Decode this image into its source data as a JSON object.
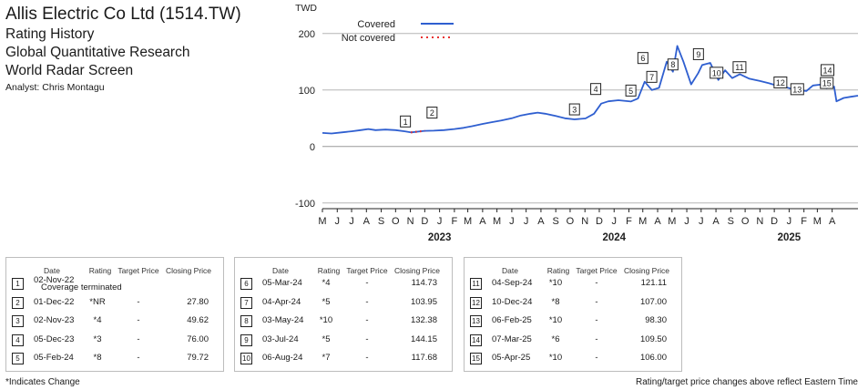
{
  "header": {
    "company": "Allis Electric Co Ltd (1514.TW)",
    "line1": "Rating History",
    "line2": "Global Quantitative Research",
    "line3": "World Radar Screen",
    "analyst": "Analyst: Chris Montagu"
  },
  "chart_data": {
    "type": "line",
    "ylabel": "TWD",
    "ylim": [
      -110,
      240
    ],
    "yticks": [
      -100,
      0,
      100,
      200
    ],
    "xlim": [
      "2022-05-01",
      "2025-05-25"
    ],
    "months": [
      "M",
      "J",
      "J",
      "A",
      "S",
      "O",
      "N",
      "D",
      "J",
      "F",
      "M",
      "A",
      "M",
      "J",
      "J",
      "A",
      "S",
      "O",
      "N",
      "D",
      "J",
      "F",
      "M",
      "A",
      "M",
      "J",
      "J",
      "A",
      "S",
      "O",
      "N",
      "D",
      "J",
      "F",
      "M",
      "A"
    ],
    "years": [
      {
        "label": "2023",
        "date": "2023-01-01"
      },
      {
        "label": "2024",
        "date": "2024-01-01"
      },
      {
        "label": "2025",
        "date": "2025-01-01"
      }
    ],
    "grid": true,
    "legend_position": "top-left",
    "series": [
      {
        "name": "Covered",
        "color": "#2f5fd0",
        "style": "solid",
        "points": [
          [
            "2022-05-01",
            24
          ],
          [
            "2022-05-20",
            23
          ],
          [
            "2022-06-10",
            25
          ],
          [
            "2022-07-01",
            27
          ],
          [
            "2022-07-20",
            29
          ],
          [
            "2022-08-05",
            31
          ],
          [
            "2022-08-20",
            29
          ],
          [
            "2022-09-10",
            30
          ],
          [
            "2022-10-01",
            29
          ],
          [
            "2022-10-20",
            27
          ],
          [
            "2022-11-02",
            25
          ],
          [
            "2022-12-01",
            27.8
          ],
          [
            "2022-12-20",
            28
          ],
          [
            "2023-01-10",
            29
          ],
          [
            "2023-02-01",
            31
          ],
          [
            "2023-02-20",
            33
          ],
          [
            "2023-03-10",
            36
          ],
          [
            "2023-04-01",
            40
          ],
          [
            "2023-04-20",
            43
          ],
          [
            "2023-05-10",
            46
          ],
          [
            "2023-06-01",
            50
          ],
          [
            "2023-06-20",
            55
          ],
          [
            "2023-07-10",
            58
          ],
          [
            "2023-07-25",
            60
          ],
          [
            "2023-08-10",
            58
          ],
          [
            "2023-09-01",
            54
          ],
          [
            "2023-09-20",
            50
          ],
          [
            "2023-10-10",
            48
          ],
          [
            "2023-11-02",
            49.62
          ],
          [
            "2023-11-20",
            58
          ],
          [
            "2023-12-05",
            76
          ],
          [
            "2023-12-20",
            80
          ],
          [
            "2024-01-10",
            82
          ],
          [
            "2024-02-05",
            79.72
          ],
          [
            "2024-02-20",
            85
          ],
          [
            "2024-03-05",
            114.73
          ],
          [
            "2024-03-20",
            100
          ],
          [
            "2024-04-04",
            103.95
          ],
          [
            "2024-04-20",
            150
          ],
          [
            "2024-05-03",
            132.38
          ],
          [
            "2024-05-12",
            178
          ],
          [
            "2024-05-25",
            150
          ],
          [
            "2024-06-10",
            110
          ],
          [
            "2024-06-25",
            130
          ],
          [
            "2024-07-03",
            144.15
          ],
          [
            "2024-07-20",
            148
          ],
          [
            "2024-08-06",
            117.68
          ],
          [
            "2024-08-20",
            135
          ],
          [
            "2024-09-04",
            121.11
          ],
          [
            "2024-09-20",
            128
          ],
          [
            "2024-10-10",
            120
          ],
          [
            "2024-11-01",
            116
          ],
          [
            "2024-11-20",
            112
          ],
          [
            "2024-12-10",
            107
          ],
          [
            "2024-12-25",
            105
          ],
          [
            "2025-01-15",
            100
          ],
          [
            "2025-02-06",
            98.3
          ],
          [
            "2025-02-20",
            108
          ],
          [
            "2025-03-07",
            109.5
          ],
          [
            "2025-03-20",
            103
          ],
          [
            "2025-04-05",
            106
          ],
          [
            "2025-04-10",
            80
          ],
          [
            "2025-04-25",
            86
          ],
          [
            "2025-05-10",
            88
          ],
          [
            "2025-05-25",
            90
          ]
        ]
      },
      {
        "name": "Not covered",
        "color": "#e8302f",
        "style": "dotted",
        "points": [
          [
            "2022-11-02",
            25
          ],
          [
            "2022-12-01",
            27.8
          ]
        ]
      }
    ],
    "markers": [
      {
        "label": "1",
        "date": "2022-11-02",
        "value": 25
      },
      {
        "label": "2",
        "date": "2022-12-01",
        "value": 27.8
      },
      {
        "label": "3",
        "date": "2023-11-02",
        "value": 49.62
      },
      {
        "label": "4",
        "date": "2023-12-05",
        "value": 76
      },
      {
        "label": "5",
        "date": "2024-02-05",
        "value": 79.72
      },
      {
        "label": "6",
        "date": "2024-03-05",
        "value": 114.73
      },
      {
        "label": "7",
        "date": "2024-04-04",
        "value": 103.95
      },
      {
        "label": "8",
        "date": "2024-05-03",
        "value": 132.38
      },
      {
        "label": "9",
        "date": "2024-07-03",
        "value": 144.15
      },
      {
        "label": "10",
        "date": "2024-08-06",
        "value": 117.68
      },
      {
        "label": "11",
        "date": "2024-09-04",
        "value": 121.11
      },
      {
        "label": "12",
        "date": "2024-12-10",
        "value": 107
      },
      {
        "label": "13",
        "date": "2025-02-06",
        "value": 98.3
      },
      {
        "label": "14",
        "date": "2025-03-07",
        "value": 109.5
      },
      {
        "label": "15",
        "date": "2025-04-05",
        "value": 106
      }
    ],
    "table": {
      "columns": [
        "Date",
        "Rating",
        "Target Price",
        "Closing Price"
      ],
      "rows": [
        {
          "n": "1",
          "date": "02-Nov-22",
          "note": "Coverage terminated"
        },
        {
          "n": "2",
          "date": "01-Dec-22",
          "rating": "*NR",
          "target": "-",
          "close": "27.80"
        },
        {
          "n": "3",
          "date": "02-Nov-23",
          "rating": "*4",
          "target": "-",
          "close": "49.62"
        },
        {
          "n": "4",
          "date": "05-Dec-23",
          "rating": "*3",
          "target": "-",
          "close": "76.00"
        },
        {
          "n": "5",
          "date": "05-Feb-24",
          "rating": "*8",
          "target": "-",
          "close": "79.72"
        },
        {
          "n": "6",
          "date": "05-Mar-24",
          "rating": "*4",
          "target": "-",
          "close": "114.73"
        },
        {
          "n": "7",
          "date": "04-Apr-24",
          "rating": "*5",
          "target": "-",
          "close": "103.95"
        },
        {
          "n": "8",
          "date": "03-May-24",
          "rating": "*10",
          "target": "-",
          "close": "132.38"
        },
        {
          "n": "9",
          "date": "03-Jul-24",
          "rating": "*5",
          "target": "-",
          "close": "144.15"
        },
        {
          "n": "10",
          "date": "06-Aug-24",
          "rating": "*7",
          "target": "-",
          "close": "117.68"
        },
        {
          "n": "11",
          "date": "04-Sep-24",
          "rating": "*10",
          "target": "-",
          "close": "121.11"
        },
        {
          "n": "12",
          "date": "10-Dec-24",
          "rating": "*8",
          "target": "-",
          "close": "107.00"
        },
        {
          "n": "13",
          "date": "06-Feb-25",
          "rating": "*10",
          "target": "-",
          "close": "98.30"
        },
        {
          "n": "14",
          "date": "07-Mar-25",
          "rating": "*6",
          "target": "-",
          "close": "109.50"
        },
        {
          "n": "15",
          "date": "05-Apr-25",
          "rating": "*10",
          "target": "-",
          "close": "106.00"
        }
      ]
    }
  },
  "footer": {
    "left": "*Indicates Change",
    "right": "Rating/target price changes above reflect Eastern Time"
  }
}
